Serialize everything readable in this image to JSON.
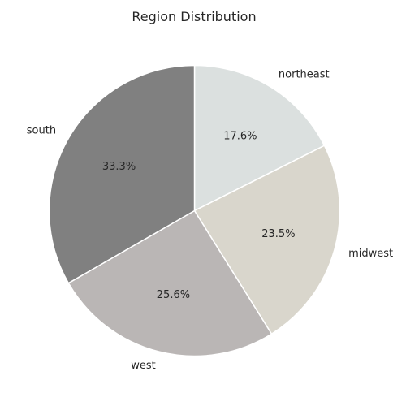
{
  "chart_data": {
    "type": "pie",
    "title": "Region Distribution",
    "start": "top",
    "direction": "clockwise",
    "slices": [
      {
        "label": "northeast",
        "value": 17.6,
        "pct_label": "17.6%",
        "color": "#dbe0df"
      },
      {
        "label": "midwest",
        "value": 23.5,
        "pct_label": "23.5%",
        "color": "#d9d6cc"
      },
      {
        "label": "west",
        "value": 25.6,
        "pct_label": "25.6%",
        "color": "#bab6b5"
      },
      {
        "label": "south",
        "value": 33.3,
        "pct_label": "33.3%",
        "color": "#808080"
      }
    ]
  }
}
